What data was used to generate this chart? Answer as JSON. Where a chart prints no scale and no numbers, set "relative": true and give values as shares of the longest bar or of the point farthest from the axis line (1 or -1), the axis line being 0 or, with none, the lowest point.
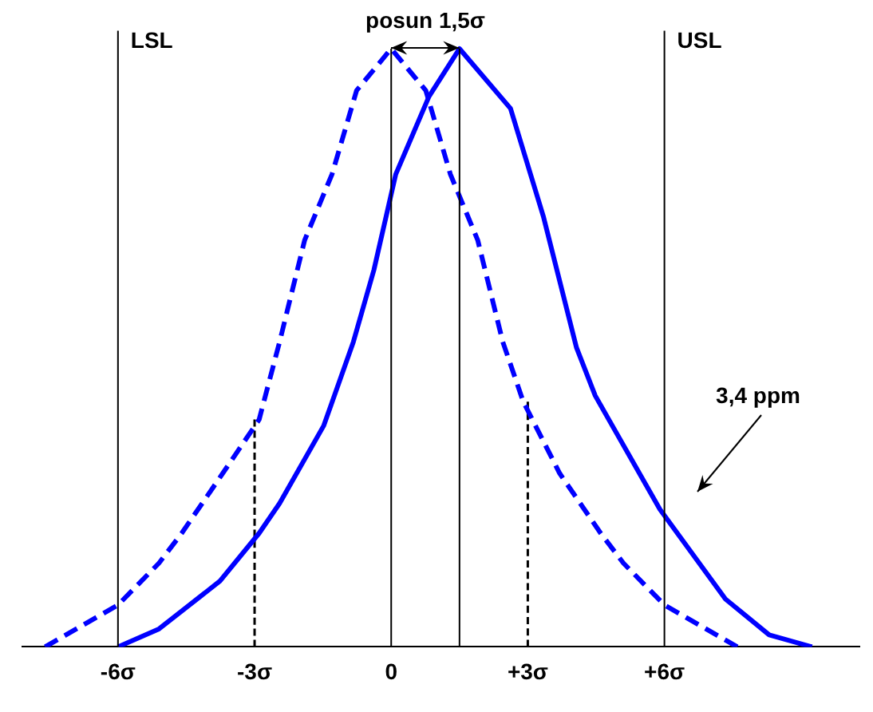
{
  "chart_data": {
    "type": "line",
    "relative": true,
    "xlim": [
      -8.1,
      10.3
    ],
    "xticks": [
      {
        "value": -6,
        "label": "-6σ"
      },
      {
        "value": -3,
        "label": "-3σ"
      },
      0,
      {
        "value": 3,
        "label": "+3σ"
      },
      {
        "value": 6,
        "label": "+6σ"
      }
    ],
    "series": [
      {
        "color": "#0000ff",
        "line_style": "dashed",
        "x": [
          -7.6,
          -6,
          -5.1,
          -4.6,
          -3.7,
          -2.9,
          -2.45,
          -1.9,
          -1.3,
          -0.76,
          0,
          0.76,
          1.3,
          1.9,
          2.45,
          2.9,
          3.7,
          4.6,
          5.1,
          6,
          7.6
        ],
        "values": [
          0,
          0.07,
          0.14,
          0.19,
          0.29,
          0.38,
          0.51,
          0.68,
          0.79,
          0.93,
          1,
          0.93,
          0.79,
          0.68,
          0.51,
          0.41,
          0.29,
          0.19,
          0.14,
          0.07,
          0
        ]
      },
      {
        "color": "#0000ff",
        "line_style": "solid",
        "x": [
          -6,
          -5.1,
          -3.76,
          -2.9,
          -2.45,
          -1.48,
          -0.83,
          -0.38,
          0.1,
          0.83,
          1.5,
          2.62,
          3.34,
          4.07,
          4.48,
          5.9,
          7.34,
          8.3,
          9.24
        ],
        "values": [
          0,
          0.03,
          0.11,
          0.19,
          0.24,
          0.37,
          0.51,
          0.63,
          0.79,
          0.92,
          1,
          0.9,
          0.72,
          0.5,
          0.42,
          0.23,
          0.08,
          0.02,
          0
        ]
      },
      {
        "color": "#000000",
        "line_style": "dashed",
        "x": [
          -3,
          -3
        ],
        "values": [
          0,
          0.38
        ]
      },
      {
        "color": "#000000",
        "line_style": "dashed",
        "x": [
          3,
          3
        ],
        "values": [
          0,
          0.41
        ]
      }
    ],
    "ref_lines": [
      {
        "axis": "x",
        "value": -6,
        "label": "LSL"
      },
      {
        "axis": "x",
        "value": 6,
        "label": "USL"
      },
      {
        "axis": "x",
        "value": 0
      },
      {
        "axis": "x",
        "value": 1.5
      }
    ],
    "annotations": [
      "posun 1,5σ",
      "3,4 ppm"
    ],
    "legend": false,
    "grid": false
  }
}
